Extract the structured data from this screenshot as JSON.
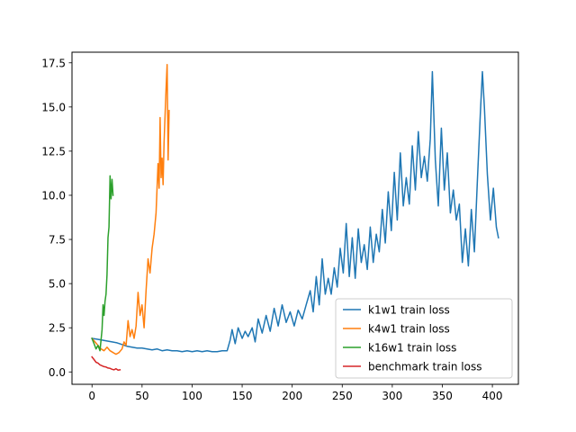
{
  "chart_data": {
    "type": "line",
    "title": "",
    "xlabel": "",
    "ylabel": "",
    "xlim": [
      -20,
      426
    ],
    "ylim": [
      -0.7,
      18.1
    ],
    "xticks": [
      0,
      50,
      100,
      150,
      200,
      250,
      300,
      350,
      400
    ],
    "yticks": [
      0.0,
      2.5,
      5.0,
      7.5,
      10.0,
      12.5,
      15.0,
      17.5
    ],
    "ytick_labels": [
      "0.0",
      "2.5",
      "5.0",
      "7.5",
      "10.0",
      "12.5",
      "15.0",
      "17.5"
    ],
    "grid": false,
    "legend_position": "lower-right",
    "series": [
      {
        "name": "k1w1 train loss",
        "color": "#1f77b4",
        "points": [
          [
            0,
            1.9
          ],
          [
            5,
            1.85
          ],
          [
            10,
            1.8
          ],
          [
            15,
            1.75
          ],
          [
            20,
            1.7
          ],
          [
            25,
            1.65
          ],
          [
            30,
            1.55
          ],
          [
            35,
            1.45
          ],
          [
            40,
            1.4
          ],
          [
            45,
            1.35
          ],
          [
            50,
            1.35
          ],
          [
            55,
            1.3
          ],
          [
            60,
            1.25
          ],
          [
            65,
            1.3
          ],
          [
            70,
            1.2
          ],
          [
            75,
            1.25
          ],
          [
            80,
            1.2
          ],
          [
            85,
            1.2
          ],
          [
            90,
            1.15
          ],
          [
            95,
            1.2
          ],
          [
            100,
            1.15
          ],
          [
            105,
            1.2
          ],
          [
            110,
            1.15
          ],
          [
            115,
            1.2
          ],
          [
            120,
            1.15
          ],
          [
            125,
            1.15
          ],
          [
            130,
            1.2
          ],
          [
            135,
            1.2
          ],
          [
            138,
            1.8
          ],
          [
            140,
            2.4
          ],
          [
            143,
            1.6
          ],
          [
            146,
            2.5
          ],
          [
            150,
            1.9
          ],
          [
            153,
            2.3
          ],
          [
            156,
            2.0
          ],
          [
            160,
            2.5
          ],
          [
            163,
            1.7
          ],
          [
            166,
            3.0
          ],
          [
            170,
            2.2
          ],
          [
            174,
            3.2
          ],
          [
            178,
            2.3
          ],
          [
            182,
            3.6
          ],
          [
            186,
            2.6
          ],
          [
            190,
            3.8
          ],
          [
            194,
            2.8
          ],
          [
            198,
            3.4
          ],
          [
            202,
            2.6
          ],
          [
            206,
            3.5
          ],
          [
            210,
            3.0
          ],
          [
            214,
            3.8
          ],
          [
            218,
            4.6
          ],
          [
            221,
            3.4
          ],
          [
            224,
            5.4
          ],
          [
            227,
            3.8
          ],
          [
            230,
            6.4
          ],
          [
            233,
            4.4
          ],
          [
            236,
            5.3
          ],
          [
            239,
            4.4
          ],
          [
            242,
            5.9
          ],
          [
            245,
            4.8
          ],
          [
            248,
            7.0
          ],
          [
            251,
            5.6
          ],
          [
            254,
            8.4
          ],
          [
            257,
            5.4
          ],
          [
            260,
            7.6
          ],
          [
            263,
            5.3
          ],
          [
            266,
            8.1
          ],
          [
            269,
            6.2
          ],
          [
            272,
            7.2
          ],
          [
            275,
            5.8
          ],
          [
            278,
            8.2
          ],
          [
            281,
            6.2
          ],
          [
            284,
            7.8
          ],
          [
            287,
            6.8
          ],
          [
            290,
            9.2
          ],
          [
            293,
            7.3
          ],
          [
            296,
            10.2
          ],
          [
            299,
            8.0
          ],
          [
            302,
            11.3
          ],
          [
            305,
            8.6
          ],
          [
            308,
            12.4
          ],
          [
            311,
            9.4
          ],
          [
            314,
            11.0
          ],
          [
            317,
            9.5
          ],
          [
            320,
            12.8
          ],
          [
            323,
            10.3
          ],
          [
            326,
            13.6
          ],
          [
            329,
            11.0
          ],
          [
            332,
            12.2
          ],
          [
            335,
            10.8
          ],
          [
            338,
            13.2
          ],
          [
            340,
            17.0
          ],
          [
            343,
            12.0
          ],
          [
            346,
            9.4
          ],
          [
            349,
            13.8
          ],
          [
            352,
            10.3
          ],
          [
            355,
            12.4
          ],
          [
            358,
            9.0
          ],
          [
            361,
            10.3
          ],
          [
            364,
            8.6
          ],
          [
            367,
            9.5
          ],
          [
            370,
            6.2
          ],
          [
            373,
            8.1
          ],
          [
            376,
            6.0
          ],
          [
            379,
            9.2
          ],
          [
            382,
            6.8
          ],
          [
            385,
            10.8
          ],
          [
            388,
            14.6
          ],
          [
            390,
            17.0
          ],
          [
            392,
            15.0
          ],
          [
            395,
            11.2
          ],
          [
            398,
            8.6
          ],
          [
            401,
            10.4
          ],
          [
            404,
            8.2
          ],
          [
            406,
            7.6
          ]
        ]
      },
      {
        "name": "k4w1 train loss",
        "color": "#ff7f0e",
        "points": [
          [
            0,
            1.9
          ],
          [
            3,
            1.7
          ],
          [
            6,
            1.5
          ],
          [
            9,
            1.3
          ],
          [
            12,
            1.2
          ],
          [
            15,
            1.4
          ],
          [
            18,
            1.2
          ],
          [
            21,
            1.1
          ],
          [
            24,
            1.0
          ],
          [
            27,
            1.1
          ],
          [
            30,
            1.3
          ],
          [
            32,
            1.7
          ],
          [
            34,
            1.5
          ],
          [
            36,
            2.9
          ],
          [
            38,
            2.0
          ],
          [
            40,
            2.4
          ],
          [
            42,
            1.9
          ],
          [
            44,
            2.6
          ],
          [
            46,
            4.5
          ],
          [
            48,
            3.2
          ],
          [
            50,
            3.8
          ],
          [
            52,
            2.5
          ],
          [
            54,
            4.6
          ],
          [
            56,
            6.4
          ],
          [
            58,
            5.6
          ],
          [
            60,
            7.0
          ],
          [
            62,
            7.8
          ],
          [
            64,
            9.0
          ],
          [
            66,
            11.8
          ],
          [
            67,
            10.4
          ],
          [
            68,
            14.4
          ],
          [
            69,
            11.0
          ],
          [
            70,
            12.1
          ],
          [
            71,
            10.6
          ],
          [
            72,
            13.0
          ],
          [
            74,
            16.0
          ],
          [
            75,
            17.4
          ],
          [
            76,
            12.0
          ],
          [
            77,
            14.8
          ]
        ]
      },
      {
        "name": "k16w1 train loss",
        "color": "#2ca02c",
        "points": [
          [
            0,
            1.9
          ],
          [
            2,
            1.6
          ],
          [
            4,
            1.3
          ],
          [
            6,
            1.5
          ],
          [
            8,
            1.2
          ],
          [
            10,
            2.4
          ],
          [
            11,
            3.8
          ],
          [
            12,
            3.2
          ],
          [
            13,
            4.0
          ],
          [
            14,
            4.4
          ],
          [
            15,
            5.5
          ],
          [
            16,
            7.6
          ],
          [
            17,
            8.2
          ],
          [
            18,
            11.1
          ],
          [
            19,
            9.8
          ],
          [
            20,
            10.9
          ],
          [
            21,
            10.0
          ]
        ]
      },
      {
        "name": "benchmark train loss",
        "color": "#d62728",
        "points": [
          [
            0,
            0.85
          ],
          [
            2,
            0.7
          ],
          [
            4,
            0.55
          ],
          [
            6,
            0.5
          ],
          [
            8,
            0.4
          ],
          [
            10,
            0.35
          ],
          [
            12,
            0.3
          ],
          [
            14,
            0.28
          ],
          [
            16,
            0.22
          ],
          [
            18,
            0.2
          ],
          [
            20,
            0.15
          ],
          [
            22,
            0.12
          ],
          [
            24,
            0.18
          ],
          [
            26,
            0.1
          ],
          [
            28,
            0.12
          ]
        ]
      }
    ]
  }
}
